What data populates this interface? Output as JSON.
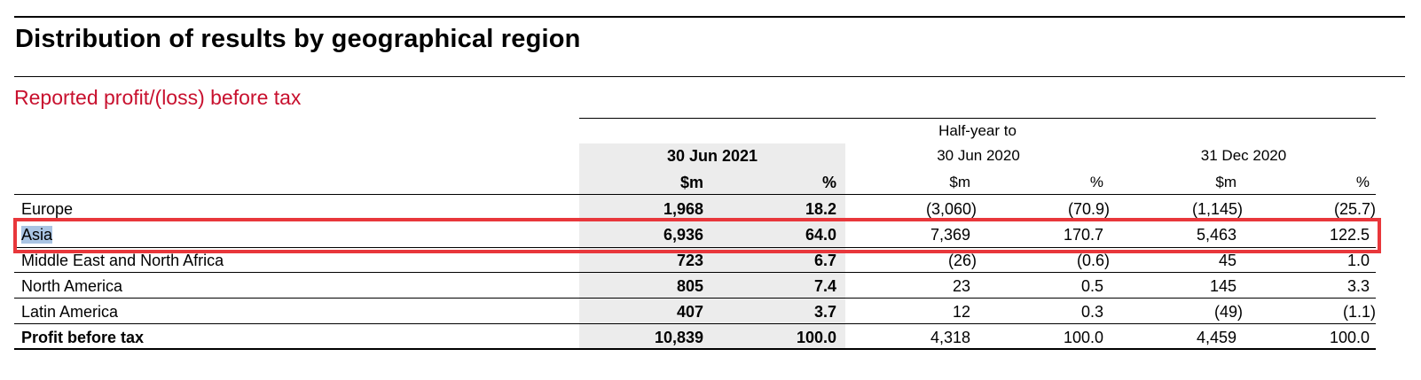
{
  "page": {
    "title": "Distribution of results by geographical region",
    "section_title": "Reported profit/(loss) before tax"
  },
  "table": {
    "group_header": "Half-year to",
    "periods": [
      {
        "label": "30 Jun 2021",
        "unit": "$m",
        "pct": "%"
      },
      {
        "label": "30 Jun 2020",
        "unit": "$m",
        "pct": "%"
      },
      {
        "label": "31 Dec 2020",
        "unit": "$m",
        "pct": "%"
      }
    ],
    "rows": [
      {
        "label": "Europe",
        "values": [
          "1,968",
          "18.2",
          "(3,060)",
          "(70.9)",
          "(1,145)",
          "(25.7)"
        ]
      },
      {
        "label": "Asia",
        "values": [
          "6,936",
          "64.0",
          "7,369",
          "170.7",
          "5,463",
          "122.5"
        ]
      },
      {
        "label": "Middle East and North Africa",
        "values": [
          "723",
          "6.7",
          "(26)",
          "(0.6)",
          "45",
          "1.0"
        ]
      },
      {
        "label": "North America",
        "values": [
          "805",
          "7.4",
          "23",
          "0.5",
          "145",
          "3.3"
        ]
      },
      {
        "label": "Latin America",
        "values": [
          "407",
          "3.7",
          "12",
          "0.3",
          "(49)",
          "(1.1)"
        ]
      },
      {
        "label": "Profit before tax",
        "values": [
          "10,839",
          "100.0",
          "4,318",
          "100.0",
          "4,459",
          "100.0"
        ]
      }
    ]
  },
  "colors": {
    "section_title": "#c8102e",
    "highlight_column": "#ececec",
    "annotation_border": "#e8373b",
    "text_selection": "#a9c4e3"
  }
}
